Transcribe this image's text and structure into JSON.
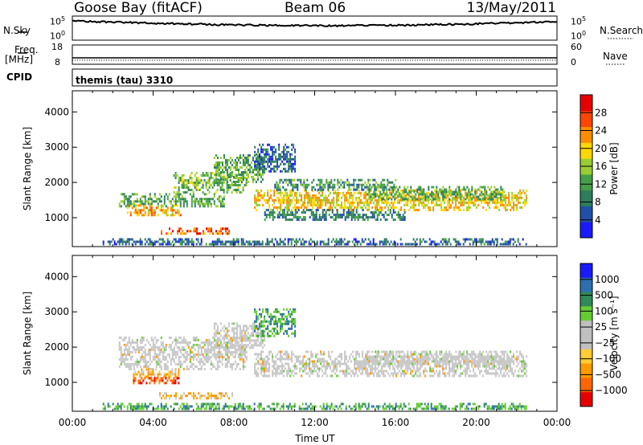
{
  "header": {
    "station": "Goose Bay (fitACF)",
    "beam": "Beam 06",
    "date": "13/May/2011"
  },
  "top_panels": {
    "nsky_label": "N.Sky",
    "nsky_ticks": [
      "10^5",
      "10^0"
    ],
    "nsearch_label": "N.Search",
    "nsearch_ticks": [
      "10^5",
      "10^0"
    ],
    "freq_label": "Freq.",
    "freq_unit": "[MHz]",
    "freq_ticks": [
      "18",
      "8"
    ],
    "nave_label": "Nave",
    "nave_ticks": [
      "60",
      "0"
    ],
    "cpid_label": "CPID",
    "cpid_value": "themis (tau) 3310"
  },
  "colors": {
    "power_scale": [
      "#1a1aff",
      "#1f4fa8",
      "#2e7d5b",
      "#43a047",
      "#9acd32",
      "#ffd700",
      "#ff8c00",
      "#ff4500",
      "#e60000"
    ],
    "velocity_scale": [
      "#e60000",
      "#ff6600",
      "#ff9900",
      "#ffcc33",
      "#c0c0c0",
      "#c0c0c0",
      "#66cc33",
      "#2e8b57",
      "#2c6fb0",
      "#1a1aff"
    ]
  },
  "chart_data": [
    {
      "type": "heatmap",
      "name": "power",
      "xlabel": "",
      "ylabel": "Slant Range [km]",
      "xlim": [
        0,
        24
      ],
      "ylim": [
        180,
        4600
      ],
      "yticks": [
        1000,
        2000,
        3000,
        4000
      ],
      "colorbar": {
        "label": "Power [dB]",
        "ticks": [
          4,
          8,
          12,
          16,
          20,
          24,
          28
        ],
        "range": [
          0,
          32
        ]
      },
      "bands": [
        {
          "t_start": 2.7,
          "t_end": 5.4,
          "r_start": 1050,
          "r_end": 1380,
          "value": 22
        },
        {
          "t_start": 4.3,
          "t_end": 7.9,
          "r_start": 540,
          "r_end": 720,
          "value": 27
        },
        {
          "t_start": 2.3,
          "t_end": 7.5,
          "r_start": 1350,
          "r_end": 1700,
          "value": 12
        },
        {
          "t_start": 5.0,
          "t_end": 8.6,
          "r_start": 1750,
          "r_end": 2300,
          "value": 14
        },
        {
          "t_start": 7.0,
          "t_end": 9.5,
          "r_start": 2000,
          "r_end": 2800,
          "value": 12
        },
        {
          "t_start": 9.0,
          "t_end": 22.5,
          "r_start": 1250,
          "r_end": 1800,
          "value": 20
        },
        {
          "t_start": 10.0,
          "t_end": 16.0,
          "r_start": 1800,
          "r_end": 2100,
          "value": 10
        },
        {
          "t_start": 14.5,
          "t_end": 21.5,
          "r_start": 1500,
          "r_end": 1900,
          "value": 12
        },
        {
          "t_start": 9.5,
          "t_end": 16.5,
          "r_start": 950,
          "r_end": 1250,
          "value": 8
        },
        {
          "t_start": 1.5,
          "t_end": 22.5,
          "r_start": 220,
          "r_end": 420,
          "value": 6
        },
        {
          "t_start": 9.0,
          "t_end": 11.0,
          "r_start": 2300,
          "r_end": 3100,
          "value": 6
        }
      ]
    },
    {
      "type": "heatmap",
      "name": "velocity",
      "xlabel": "Time UT",
      "ylabel": "Slant Range [km]",
      "xlim": [
        0,
        24
      ],
      "ylim": [
        180,
        4600
      ],
      "xticks": [
        "00:00",
        "04:00",
        "08:00",
        "12:00",
        "16:00",
        "20:00",
        "00:00"
      ],
      "yticks": [
        1000,
        2000,
        3000,
        4000
      ],
      "colorbar": {
        "label": "Velocity [m s⁻¹]",
        "ticks": [
          1000,
          500,
          100,
          25,
          -25,
          -100,
          -500,
          -1000
        ]
      },
      "bands": [
        {
          "t_start": 3.0,
          "t_end": 5.3,
          "r_start": 1150,
          "r_end": 1400,
          "value": -200
        },
        {
          "t_start": 3.0,
          "t_end": 5.3,
          "r_start": 950,
          "r_end": 1150,
          "value": -300
        },
        {
          "t_start": 4.3,
          "t_end": 7.9,
          "r_start": 540,
          "r_end": 720,
          "value": -150
        },
        {
          "t_start": 2.3,
          "t_end": 8.6,
          "r_start": 1400,
          "r_end": 2300,
          "value": 0
        },
        {
          "t_start": 7.0,
          "t_end": 9.5,
          "r_start": 2000,
          "r_end": 2700,
          "value": 0
        },
        {
          "t_start": 9.0,
          "t_end": 22.5,
          "r_start": 1150,
          "r_end": 1900,
          "value": 0
        },
        {
          "t_start": 14.5,
          "t_end": 21.5,
          "r_start": 1500,
          "r_end": 1900,
          "value": 0
        },
        {
          "t_start": 1.5,
          "t_end": 22.5,
          "r_start": 220,
          "r_end": 420,
          "value": 60
        },
        {
          "t_start": 9.0,
          "t_end": 11.0,
          "r_start": 2300,
          "r_end": 3100,
          "value": 40
        }
      ]
    }
  ]
}
